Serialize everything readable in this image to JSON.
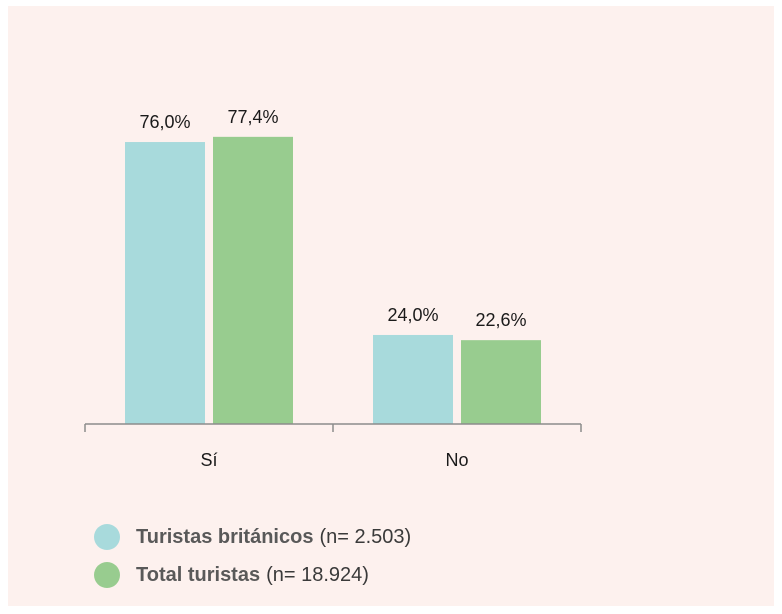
{
  "colors": {
    "panel_background": "#fdf1ee",
    "axis": "#8c8c8c",
    "text": "#1a1a1a"
  },
  "chart_data": {
    "type": "bar",
    "categories": [
      "Sí",
      "No"
    ],
    "series": [
      {
        "name": "Turistas británicos",
        "note": "(n= 2.503)",
        "color": "#a8dadc",
        "values": [
          76.0,
          24.0
        ],
        "labels": [
          "76,0%",
          "24,0%"
        ]
      },
      {
        "name": "Total turistas",
        "note": "(n= 18.924)",
        "color": "#98cc8f",
        "values": [
          77.4,
          22.6
        ],
        "labels": [
          "77,4%",
          "22,6%"
        ]
      }
    ],
    "ylim": [
      0,
      100
    ],
    "grid": false,
    "legend_position": "bottom-left"
  }
}
